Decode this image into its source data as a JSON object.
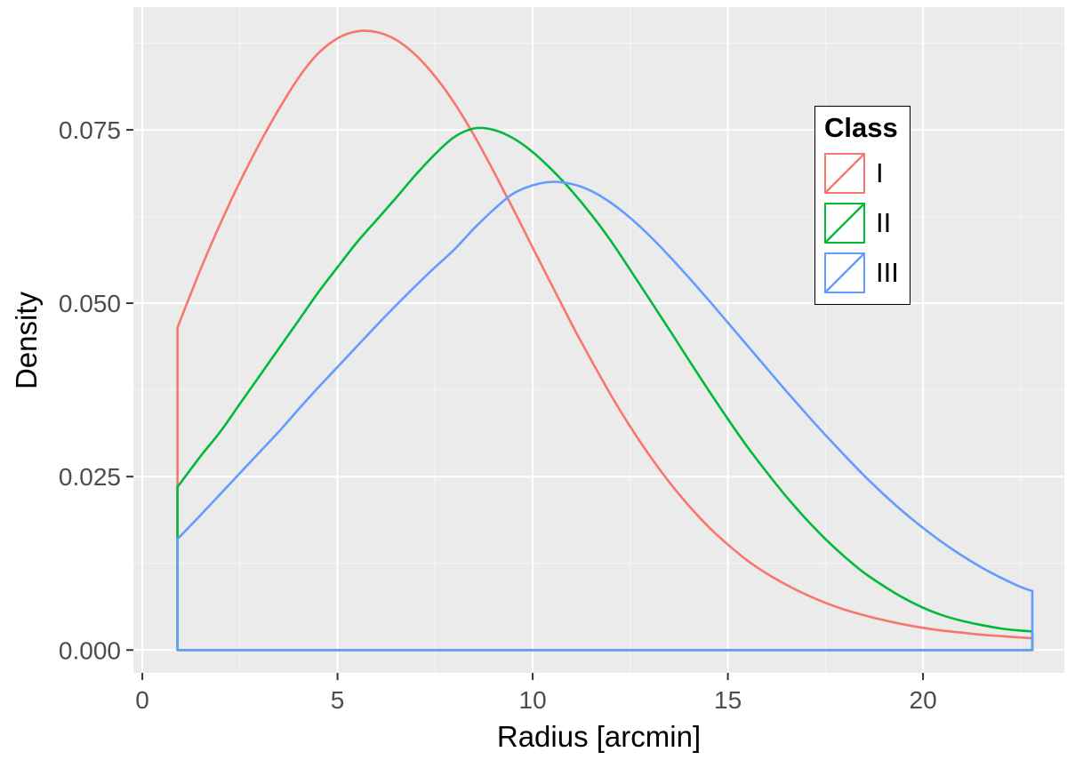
{
  "chart_data": {
    "type": "line",
    "subtype": "density-outline",
    "title": "",
    "xlabel": "Radius [arcmin]",
    "ylabel": "Density",
    "xlim": [
      -0.23,
      23.62
    ],
    "ylim": [
      -0.0033,
      0.0927
    ],
    "grid": true,
    "panel_background": "#EBEBEB",
    "grid_major_color": "#FFFFFF",
    "grid_minor_color": "#FFFFFF",
    "tick_color": "#333333",
    "tick_label_color": "#4D4D4D",
    "x_major_ticks": [
      0,
      5,
      10,
      15,
      20
    ],
    "x_tick_labels": [
      "0",
      "5",
      "10",
      "15",
      "20"
    ],
    "x_minor_ticks": [
      2.5,
      7.5,
      12.5,
      17.5,
      22.5
    ],
    "y_major_ticks": [
      0,
      0.025,
      0.05,
      0.075
    ],
    "y_tick_labels": [
      "0.000",
      "0.025",
      "0.050",
      "0.075"
    ],
    "y_minor_ticks": [
      0.0125,
      0.0375,
      0.0625,
      0.0875
    ],
    "x": [
      0.9,
      1.5,
      2,
      2.5,
      3,
      3.5,
      4,
      4.5,
      5,
      5.5,
      6,
      6.5,
      7,
      7.5,
      8,
      8.5,
      9,
      9.5,
      10,
      10.5,
      11,
      11.5,
      12,
      12.5,
      13,
      13.5,
      14,
      14.5,
      15,
      15.5,
      16,
      16.5,
      17,
      17.5,
      18,
      18.5,
      19,
      19.5,
      20,
      20.5,
      21,
      21.5,
      22,
      22.5,
      22.8
    ],
    "series": [
      {
        "name": "I",
        "color": "#F8766D",
        "values": [
          0.0465,
          0.055,
          0.0615,
          0.0675,
          0.073,
          0.078,
          0.0825,
          0.086,
          0.0882,
          0.0892,
          0.0891,
          0.088,
          0.0858,
          0.0827,
          0.0788,
          0.0742,
          0.069,
          0.0636,
          0.058,
          0.0525,
          0.047,
          0.0418,
          0.0368,
          0.0322,
          0.028,
          0.0242,
          0.0208,
          0.0178,
          0.0152,
          0.0129,
          0.011,
          0.0094,
          0.008,
          0.0068,
          0.0058,
          0.005,
          0.0043,
          0.0037,
          0.0032,
          0.0028,
          0.0025,
          0.0022,
          0.002,
          0.0018,
          0.0017
        ]
      },
      {
        "name": "II",
        "color": "#00BA38",
        "values": [
          0.0235,
          0.028,
          0.0315,
          0.0355,
          0.0395,
          0.0435,
          0.0475,
          0.0515,
          0.0552,
          0.0588,
          0.062,
          0.0652,
          0.0685,
          0.0715,
          0.074,
          0.0752,
          0.075,
          0.0738,
          0.0718,
          0.0692,
          0.0662,
          0.0628,
          0.059,
          0.0548,
          0.0505,
          0.0462,
          0.0418,
          0.0375,
          0.0333,
          0.0293,
          0.0256,
          0.0221,
          0.0189,
          0.016,
          0.0134,
          0.0111,
          0.0092,
          0.0075,
          0.0061,
          0.005,
          0.0042,
          0.0036,
          0.0031,
          0.0028,
          0.0027
        ]
      },
      {
        "name": "III",
        "color": "#619CFF",
        "values": [
          0.016,
          0.0195,
          0.0225,
          0.0255,
          0.0285,
          0.0315,
          0.0347,
          0.0378,
          0.0408,
          0.0438,
          0.0468,
          0.0497,
          0.0525,
          0.0552,
          0.0578,
          0.0608,
          0.0635,
          0.0658,
          0.067,
          0.0675,
          0.0672,
          0.0662,
          0.0645,
          0.0623,
          0.0597,
          0.0568,
          0.0537,
          0.0505,
          0.0472,
          0.0439,
          0.0406,
          0.0373,
          0.0341,
          0.031,
          0.028,
          0.0251,
          0.0224,
          0.0199,
          0.0176,
          0.0155,
          0.0136,
          0.0119,
          0.0104,
          0.0091,
          0.0085
        ]
      }
    ],
    "legend": {
      "title": "Class",
      "position": "inside top-right",
      "background": "#FFFFFF",
      "border_color": "#000000",
      "entries": [
        {
          "label": "I",
          "color": "#F8766D"
        },
        {
          "label": "II",
          "color": "#00BA38"
        },
        {
          "label": "III",
          "color": "#619CFF"
        }
      ]
    }
  }
}
